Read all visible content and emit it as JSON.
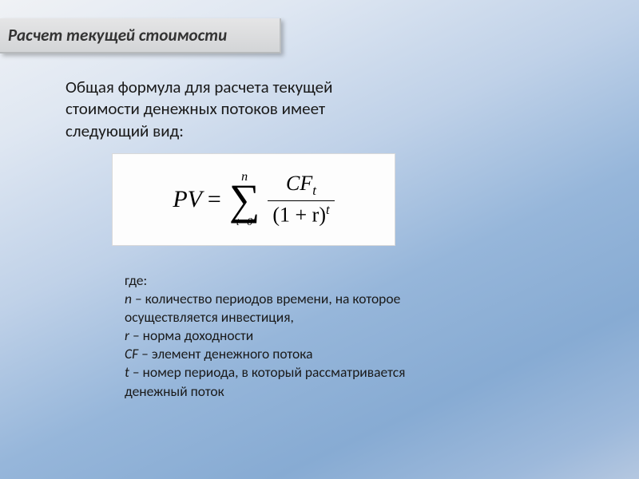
{
  "title": "Расчет текущей стоимости",
  "intro": "Общая формула для расчета текущей стоимости денежных потоков имеет следующий вид:",
  "formula": {
    "lhs": "PV",
    "eq": "=",
    "sum_top": "n",
    "sum_bot": "t=0",
    "frac_top_main": "CF",
    "frac_top_sub": "t",
    "frac_bot_base": "(1 + r)",
    "frac_bot_sup": "t"
  },
  "legend": {
    "where": "где:",
    "n": "n – количество периодов времени, на которое осуществляется инвестиция,",
    "r": "r – норма доходности",
    "cf": "CF – элемент денежного потока",
    "t": "t – номер периода, в который рассматривается денежный поток"
  },
  "colors": {
    "title_bg_top": "#e5e5e6",
    "title_bg_bot": "#d3d5d7",
    "formula_bg": "#fdfdfd",
    "formula_border": "#d9d9d9",
    "text": "#1a1a1a"
  }
}
